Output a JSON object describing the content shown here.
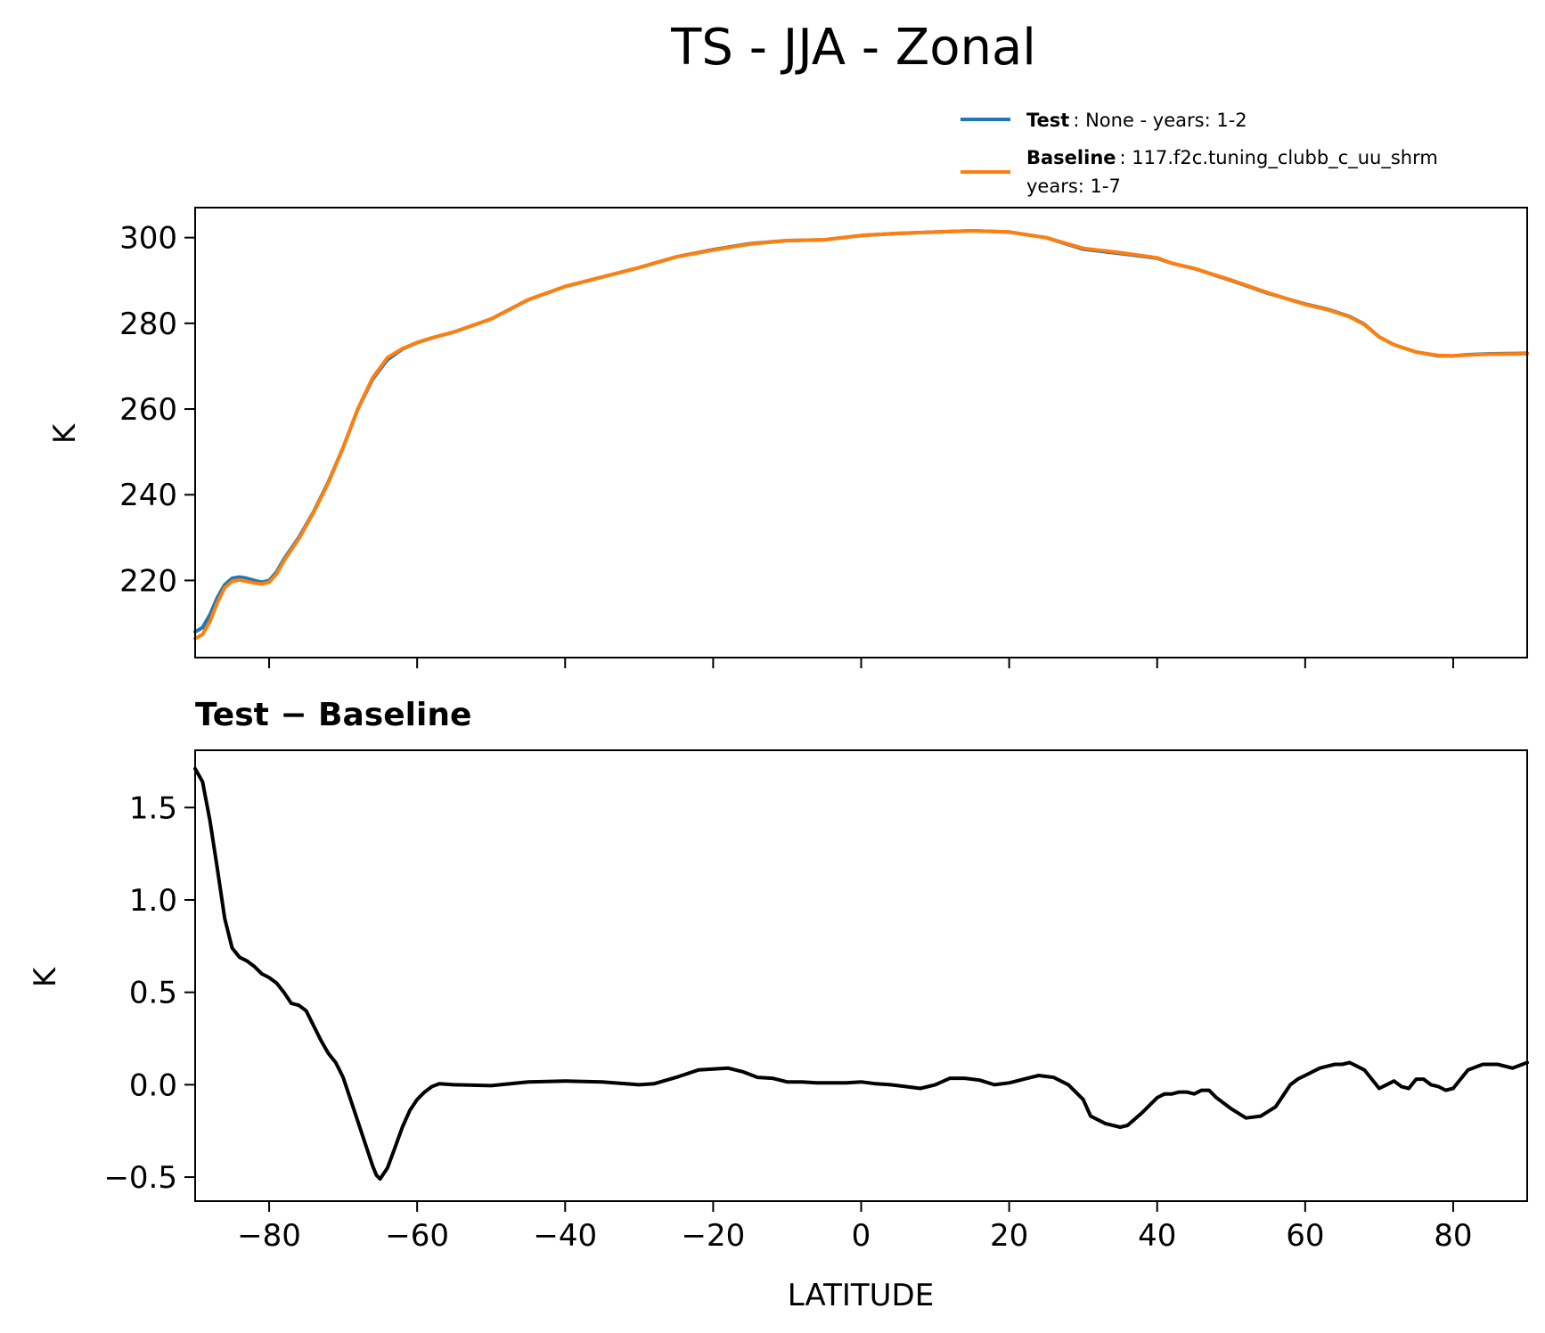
{
  "figure": {
    "title": "TS - JJA - Zonal"
  },
  "legend": {
    "placement": "top-right",
    "entries": [
      {
        "label_bold": "Test",
        "label_rest": ": None - years: 1-2",
        "label_line2": "",
        "color": "#1f77b4"
      },
      {
        "label_bold": "Baseline",
        "label_rest": ": 117.f2c.tuning_clubb_c_uu_shrm",
        "label_line2": "years: 1-7",
        "color": "#ff7f0e"
      }
    ]
  },
  "chart_data": [
    {
      "type": "line",
      "title": "",
      "xlabel": "",
      "ylabel": "K",
      "xlim": [
        -90,
        90
      ],
      "ylim": [
        202,
        307
      ],
      "grid": false,
      "xticks": [
        -80,
        -60,
        -40,
        -20,
        0,
        20,
        40,
        60,
        80
      ],
      "yticks": [
        220,
        240,
        260,
        280,
        300
      ],
      "ytick_labels": [
        "220",
        "240",
        "260",
        "280",
        "300"
      ],
      "show_xtick_labels": false,
      "x": [
        -90,
        -89,
        -88,
        -87,
        -86,
        -85,
        -84,
        -83,
        -82,
        -81,
        -80,
        -79,
        -78,
        -76,
        -74,
        -72,
        -70,
        -68,
        -66,
        -64,
        -62,
        -60,
        -58,
        -55,
        -50,
        -45,
        -40,
        -35,
        -30,
        -25,
        -20,
        -15,
        -10,
        -5,
        0,
        5,
        10,
        15,
        20,
        25,
        30,
        35,
        40,
        42,
        45,
        50,
        55,
        60,
        63,
        66,
        68,
        70,
        72,
        75,
        78,
        80,
        82,
        85,
        90
      ],
      "series": [
        {
          "name": "Test",
          "color": "#1f77b4",
          "values": [
            208,
            209,
            212,
            216,
            219,
            220.5,
            220.8,
            220.5,
            220,
            219.6,
            220,
            222,
            225,
            230,
            236,
            243,
            251,
            260,
            267,
            271.5,
            274,
            275.5,
            276.6,
            278,
            281,
            285.5,
            288.6,
            290.8,
            293,
            295.5,
            297.2,
            298.6,
            299.3,
            299.5,
            300.5,
            301,
            301.3,
            301.6,
            301.3,
            300,
            297.3,
            296.3,
            295.2,
            294,
            292.8,
            290,
            287,
            284.5,
            283.3,
            281.6,
            279.8,
            276.8,
            275,
            273.3,
            272.4,
            272.4,
            272.7,
            272.9,
            273
          ]
        },
        {
          "name": "Baseline",
          "color": "#ff7f0e",
          "values": [
            206.4,
            207.4,
            210.4,
            214.8,
            218.3,
            219.8,
            220.1,
            219.8,
            219.4,
            219.2,
            219.6,
            221.5,
            224.6,
            229.7,
            235.8,
            242.8,
            251,
            260.1,
            267.3,
            272,
            274.1,
            275.5,
            276.6,
            278,
            281,
            285.5,
            288.6,
            290.8,
            293,
            295.5,
            297.1,
            298.5,
            299.3,
            299.5,
            300.5,
            301,
            301.3,
            301.6,
            301.3,
            300,
            297.5,
            296.5,
            295.3,
            294,
            292.8,
            290.1,
            287.1,
            284.4,
            283.2,
            281.5,
            279.7,
            276.8,
            275,
            273.3,
            272.5,
            272.4,
            272.6,
            272.8,
            272.9
          ]
        }
      ]
    },
    {
      "type": "line",
      "title": "Test − Baseline",
      "xlabel": "LATITUDE",
      "ylabel": "K",
      "xlim": [
        -90,
        90
      ],
      "ylim": [
        -0.63,
        1.81
      ],
      "grid": false,
      "xticks": [
        -80,
        -60,
        -40,
        -20,
        0,
        20,
        40,
        60,
        80
      ],
      "xtick_labels": [
        "−80",
        "−60",
        "−40",
        "−20",
        "0",
        "20",
        "40",
        "60",
        "80"
      ],
      "yticks": [
        -0.5,
        0.0,
        0.5,
        1.0,
        1.5
      ],
      "ytick_labels": [
        "−0.5",
        "0.0",
        "0.5",
        "1.0",
        "1.5"
      ],
      "show_xtick_labels": true,
      "x": [
        -90,
        -89,
        -88,
        -87,
        -86,
        -85,
        -84,
        -83,
        -82,
        -81,
        -80,
        -79,
        -78,
        -77,
        -76,
        -75,
        -74,
        -73,
        -72,
        -71,
        -70,
        -69,
        -68,
        -67,
        -66,
        -65.5,
        -65,
        -64,
        -63,
        -62,
        -61,
        -60,
        -59,
        -58,
        -57,
        -55,
        -50,
        -45,
        -40,
        -35,
        -30,
        -28,
        -25,
        -22,
        -20,
        -18,
        -16,
        -14,
        -12,
        -10,
        -8,
        -6,
        -4,
        -2,
        0,
        2,
        4,
        6,
        8,
        10,
        12,
        14,
        16,
        18,
        20,
        22,
        24,
        26,
        28,
        30,
        31,
        33,
        35,
        36,
        38,
        40,
        41,
        42,
        43,
        44,
        45,
        46,
        47,
        48,
        50,
        52,
        54,
        56,
        58,
        59,
        60,
        61,
        62,
        63,
        64,
        65,
        66,
        67,
        68,
        69,
        70,
        71,
        72,
        73,
        74,
        75,
        76,
        77,
        78,
        79,
        80,
        82,
        84,
        86,
        88,
        90
      ],
      "series": [
        {
          "name": "Test − Baseline",
          "color": "#000000",
          "values": [
            1.71,
            1.64,
            1.43,
            1.17,
            0.9,
            0.74,
            0.69,
            0.67,
            0.64,
            0.6,
            0.58,
            0.55,
            0.5,
            0.44,
            0.43,
            0.4,
            0.32,
            0.24,
            0.17,
            0.12,
            0.04,
            -0.08,
            -0.2,
            -0.32,
            -0.44,
            -0.49,
            -0.51,
            -0.45,
            -0.34,
            -0.23,
            -0.14,
            -0.08,
            -0.04,
            -0.01,
            0.005,
            0.0,
            -0.005,
            0.015,
            0.02,
            0.015,
            0.0,
            0.005,
            0.04,
            0.08,
            0.085,
            0.09,
            0.07,
            0.04,
            0.035,
            0.015,
            0.015,
            0.01,
            0.01,
            0.01,
            0.015,
            0.005,
            0.0,
            -0.01,
            -0.02,
            0.0,
            0.035,
            0.035,
            0.025,
            0.0,
            0.01,
            0.03,
            0.05,
            0.04,
            0.0,
            -0.08,
            -0.17,
            -0.21,
            -0.23,
            -0.22,
            -0.15,
            -0.07,
            -0.05,
            -0.05,
            -0.04,
            -0.04,
            -0.05,
            -0.03,
            -0.03,
            -0.07,
            -0.13,
            -0.18,
            -0.17,
            -0.12,
            0.0,
            0.03,
            0.05,
            0.07,
            0.09,
            0.1,
            0.11,
            0.11,
            0.12,
            0.1,
            0.08,
            0.03,
            -0.02,
            0.0,
            0.02,
            -0.01,
            -0.02,
            0.03,
            0.03,
            0.0,
            -0.01,
            -0.03,
            -0.02,
            0.08,
            0.11,
            0.11,
            0.09,
            0.12
          ]
        }
      ]
    }
  ]
}
